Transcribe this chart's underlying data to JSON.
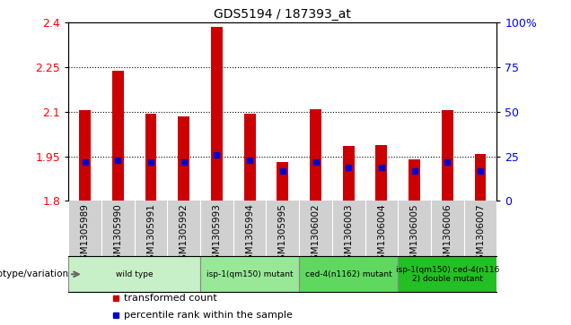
{
  "title": "GDS5194 / 187393_at",
  "samples": [
    "GSM1305989",
    "GSM1305990",
    "GSM1305991",
    "GSM1305992",
    "GSM1305993",
    "GSM1305994",
    "GSM1305995",
    "GSM1306002",
    "GSM1306003",
    "GSM1306004",
    "GSM1306005",
    "GSM1306006",
    "GSM1306007"
  ],
  "transformed_count": [
    2.105,
    2.238,
    2.095,
    2.085,
    2.385,
    2.095,
    1.93,
    2.108,
    1.985,
    1.988,
    1.94,
    2.105,
    1.958
  ],
  "percentile_rank_pct": [
    22,
    23,
    22,
    22,
    26,
    23,
    17,
    22,
    19,
    19,
    17,
    22,
    17
  ],
  "ymin": 1.8,
  "ymax": 2.4,
  "yticks": [
    1.8,
    1.95,
    2.1,
    2.25,
    2.4
  ],
  "right_yticks": [
    0,
    25,
    50,
    75,
    100
  ],
  "genotype_groups": [
    {
      "label": "wild type",
      "start": 0,
      "end": 4,
      "color": "#c8f0c8"
    },
    {
      "label": "isp-1(qm150) mutant",
      "start": 4,
      "end": 7,
      "color": "#98e898"
    },
    {
      "label": "ced-4(n1162) mutant",
      "start": 7,
      "end": 10,
      "color": "#60d860"
    },
    {
      "label": "isp-1(qm150) ced-4(n116\n2) double mutant",
      "start": 10,
      "end": 13,
      "color": "#22c022"
    }
  ],
  "bar_color": "#cc0000",
  "percentile_color": "#0000cc",
  "gray_bg": "#d0d0d0",
  "plot_bg_color": "#ffffff",
  "legend_red_label": "transformed count",
  "legend_blue_label": "percentile rank within the sample",
  "bar_width": 0.35
}
